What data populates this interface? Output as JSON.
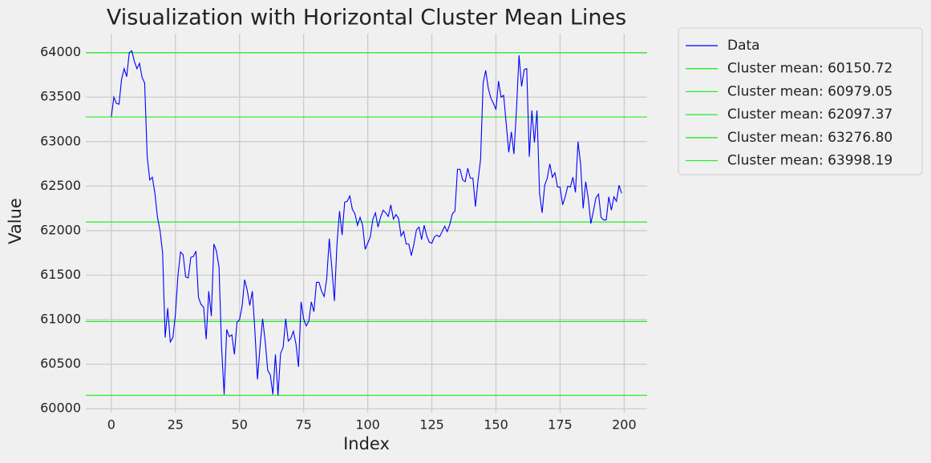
{
  "chart_data": {
    "type": "line",
    "title": "Visualization with Horizontal Cluster Mean Lines",
    "x_label": "Index",
    "y_label": "Value",
    "x": [
      0,
      1,
      2,
      3,
      4,
      5,
      6,
      7,
      8,
      9,
      10,
      11,
      12,
      13,
      14,
      15,
      16,
      17,
      18,
      19,
      20,
      21,
      22,
      23,
      24,
      25,
      26,
      27,
      28,
      29,
      30,
      31,
      32,
      33,
      34,
      35,
      36,
      37,
      38,
      39,
      40,
      41,
      42,
      43,
      44,
      45,
      46,
      47,
      48,
      49,
      50,
      51,
      52,
      53,
      54,
      55,
      56,
      57,
      58,
      59,
      60,
      61,
      62,
      63,
      64,
      65,
      66,
      67,
      68,
      69,
      70,
      71,
      72,
      73,
      74,
      75,
      76,
      77,
      78,
      79,
      80,
      81,
      82,
      83,
      84,
      85,
      86,
      87,
      88,
      89,
      90,
      91,
      92,
      93,
      94,
      95,
      96,
      97,
      98,
      99,
      100,
      101,
      102,
      103,
      104,
      105,
      106,
      107,
      108,
      109,
      110,
      111,
      112,
      113,
      114,
      115,
      116,
      117,
      118,
      119,
      120,
      121,
      122,
      123,
      124,
      125,
      126,
      127,
      128,
      129,
      130,
      131,
      132,
      133,
      134,
      135,
      136,
      137,
      138,
      139,
      140,
      141,
      142,
      143,
      144,
      145,
      146,
      147,
      148,
      149,
      150,
      151,
      152,
      153,
      154,
      155,
      156,
      157,
      158,
      159,
      160,
      161,
      162,
      163,
      164,
      165,
      166,
      167,
      168,
      169,
      170,
      171,
      172,
      173,
      174,
      175,
      176,
      177,
      178,
      179,
      180,
      181,
      182,
      183,
      184,
      185,
      186,
      187,
      188,
      189,
      190,
      191,
      192,
      193,
      194,
      195,
      196,
      197,
      198,
      199
    ],
    "series": [
      {
        "name": "Data",
        "color": "#0000ff",
        "values": [
          63280,
          63500,
          63430,
          63420,
          63700,
          63820,
          63730,
          64000,
          64020,
          63900,
          63820,
          63880,
          63720,
          63660,
          62830,
          62570,
          62600,
          62420,
          62150,
          62000,
          61750,
          60800,
          61130,
          60750,
          60800,
          61060,
          61500,
          61760,
          61730,
          61480,
          61470,
          61700,
          61710,
          61770,
          61250,
          61170,
          61140,
          60780,
          61320,
          61040,
          61850,
          61770,
          61590,
          60690,
          60160,
          60890,
          60810,
          60830,
          60610,
          60970,
          61000,
          61150,
          61450,
          61330,
          61160,
          61320,
          60870,
          60330,
          60700,
          61010,
          60760,
          60430,
          60380,
          60160,
          60610,
          60150,
          60620,
          60690,
          61010,
          60760,
          60790,
          60870,
          60730,
          60470,
          61200,
          61010,
          60930,
          60980,
          61200,
          61090,
          61420,
          61420,
          61320,
          61260,
          61460,
          61910,
          61580,
          61210,
          61850,
          62220,
          61950,
          62320,
          62330,
          62390,
          62240,
          62190,
          62060,
          62150,
          62060,
          61790,
          61860,
          61930,
          62130,
          62200,
          62040,
          62150,
          62230,
          62200,
          62160,
          62290,
          62130,
          62180,
          62140,
          61940,
          61990,
          61850,
          61850,
          61720,
          61850,
          62010,
          62040,
          61900,
          62060,
          61940,
          61870,
          61860,
          61930,
          61950,
          61930,
          61990,
          62050,
          61990,
          62070,
          62190,
          62220,
          62690,
          62690,
          62570,
          62550,
          62700,
          62590,
          62590,
          62270,
          62560,
          62800,
          63660,
          63800,
          63600,
          63490,
          63430,
          63360,
          63680,
          63500,
          63520,
          63200,
          62880,
          63110,
          62860,
          63360,
          63970,
          63620,
          63810,
          63820,
          62830,
          63350,
          62990,
          63350,
          62420,
          62200,
          62510,
          62590,
          62750,
          62600,
          62650,
          62490,
          62490,
          62290,
          62380,
          62500,
          62490,
          62600,
          62430,
          63000,
          62750,
          62250,
          62550,
          62360,
          62080,
          62220,
          62370,
          62410,
          62150,
          62120,
          62120,
          62380,
          62230,
          62380,
          62330,
          62510,
          62420
        ]
      }
    ],
    "hlines": [
      {
        "name": "Cluster mean: 60150.72",
        "value": 60150.72,
        "color": "#22ee22"
      },
      {
        "name": "Cluster mean: 60979.05",
        "value": 60979.05,
        "color": "#22ee22"
      },
      {
        "name": "Cluster mean: 62097.37",
        "value": 62097.37,
        "color": "#22ee22"
      },
      {
        "name": "Cluster mean: 63276.80",
        "value": 63276.8,
        "color": "#22ee22"
      },
      {
        "name": "Cluster mean: 63998.19",
        "value": 63998.19,
        "color": "#22ee22"
      }
    ],
    "xlim": [
      -9.95,
      208.95
    ],
    "ylim": [
      59957,
      64213
    ],
    "xticks": [
      0,
      25,
      50,
      75,
      100,
      125,
      150,
      175,
      200
    ],
    "yticks": [
      60000,
      60500,
      61000,
      61500,
      62000,
      62500,
      63000,
      63500,
      64000
    ],
    "grid": true
  }
}
